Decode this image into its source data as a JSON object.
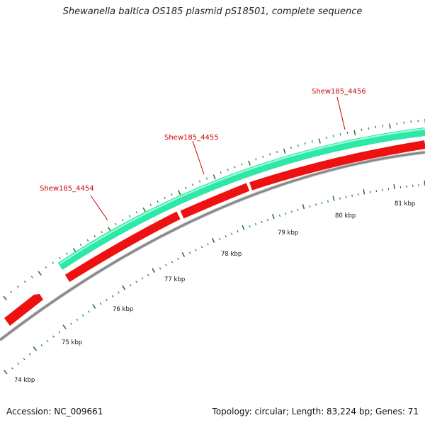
{
  "title": "Shewanella baltica OS185 plasmid pS18501, complete sequence",
  "footer": {
    "accession": "Accession: NC_009661",
    "summary": "Topology: circular; Length: 83,224 bp; Genes: 71"
  },
  "colors": {
    "forward_gene": "#2ee8a8",
    "reverse_gene": "#ee1111",
    "backbone": "#888888",
    "tick": "#2a7a2a",
    "gene_label": "#cc0000"
  },
  "kbp_labels": [
    {
      "kbp": 74,
      "text": "74 kbp"
    },
    {
      "kbp": 75,
      "text": "75 kbp"
    },
    {
      "kbp": 76,
      "text": "76 kbp"
    },
    {
      "kbp": 77,
      "text": "77 kbp"
    },
    {
      "kbp": 78,
      "text": "78 kbp"
    },
    {
      "kbp": 79,
      "text": "79 kbp"
    },
    {
      "kbp": 80,
      "text": "80 kbp"
    },
    {
      "kbp": 81,
      "text": "81 kbp"
    }
  ],
  "gene_labels": [
    {
      "name": "Shew185_4454"
    },
    {
      "name": "Shew185_4455"
    },
    {
      "name": "Shew185_4456"
    }
  ]
}
